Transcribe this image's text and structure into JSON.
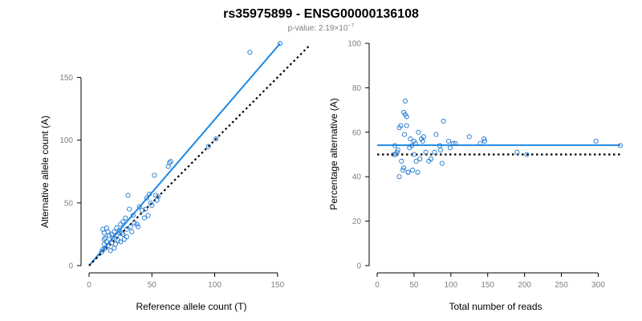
{
  "header": {
    "title": "rs35975899 - ENSG00000136108",
    "pvalue_prefix": "p-value: 2.19×10",
    "pvalue_exponent": "−7"
  },
  "colors": {
    "points": "#1f77d0",
    "fit_line": "#1e88e5",
    "reference_line": "#000000",
    "tick_labels": "#808080"
  },
  "chart_data": [
    {
      "type": "scatter",
      "title": "",
      "xlabel": "Reference allele count (T)",
      "ylabel": "Alternative allele count (A)",
      "xlim": [
        0,
        175
      ],
      "ylim": [
        0,
        165
      ],
      "xticks": [
        0,
        50,
        100,
        150
      ],
      "yticks": [
        0,
        50,
        100,
        150
      ],
      "grid": false,
      "legend": "none",
      "series": [
        {
          "kind": "points",
          "x": [
            10,
            11,
            11,
            12,
            12,
            12,
            13,
            13,
            14,
            14,
            15,
            15,
            16,
            17,
            18,
            18,
            19,
            20,
            20,
            21,
            22,
            22,
            23,
            24,
            25,
            25,
            26,
            27,
            27,
            28,
            29,
            30,
            30,
            31,
            32,
            33,
            34,
            35,
            36,
            38,
            39,
            40,
            42,
            44,
            45,
            46,
            47,
            48,
            49,
            50,
            52,
            53,
            54,
            55,
            63,
            64,
            65,
            95,
            101,
            128,
            152
          ],
          "y": [
            11,
            13,
            29,
            17,
            21,
            26,
            14,
            22,
            19,
            30,
            16,
            27,
            24,
            12,
            18,
            25,
            22,
            27,
            14,
            17,
            24,
            30,
            20,
            28,
            33,
            19,
            26,
            25,
            35,
            21,
            38,
            29,
            23,
            56,
            45,
            31,
            27,
            40,
            34,
            33,
            31,
            47,
            44,
            38,
            45,
            54,
            40,
            57,
            50,
            48,
            72,
            56,
            52,
            55,
            79,
            82,
            83,
            95,
            101,
            170,
            177
          ]
        },
        {
          "kind": "fitted-line",
          "x": [
            0,
            152
          ],
          "y": [
            0,
            177
          ]
        },
        {
          "kind": "reference-line",
          "x": [
            0,
            175
          ],
          "y": [
            0,
            175
          ]
        }
      ]
    },
    {
      "type": "scatter",
      "title": "",
      "xlabel": "Total number of reads",
      "ylabel": "Percentage alternative (A)",
      "xlim": [
        0,
        330
      ],
      "ylim": [
        0,
        100
      ],
      "xticks": [
        0,
        50,
        100,
        150,
        200,
        250,
        300
      ],
      "yticks": [
        0,
        20,
        40,
        60,
        80,
        100
      ],
      "grid": false,
      "legend": "none",
      "series": [
        {
          "kind": "points",
          "x": [
            22,
            24,
            25,
            27,
            28,
            30,
            30,
            32,
            33,
            35,
            36,
            36,
            37,
            38,
            38,
            40,
            40,
            42,
            42,
            44,
            45,
            47,
            48,
            50,
            50,
            52,
            53,
            55,
            56,
            58,
            60,
            62,
            63,
            66,
            70,
            73,
            78,
            80,
            85,
            86,
            88,
            90,
            97,
            99,
            103,
            106,
            125,
            140,
            145,
            146,
            190,
            203,
            297,
            330
          ],
          "y": [
            50,
            54,
            50,
            51,
            52,
            40,
            62,
            63,
            47,
            43,
            44,
            69,
            59,
            68,
            74,
            63,
            67,
            42,
            42,
            53,
            57,
            54,
            43,
            50,
            56,
            55,
            47,
            42,
            60,
            48,
            57,
            56,
            58,
            51,
            47,
            48,
            51,
            59,
            54,
            52,
            46,
            65,
            56,
            53,
            55,
            55,
            58,
            55,
            57,
            56,
            51,
            50,
            56,
            54
          ]
        },
        {
          "kind": "fitted-line",
          "x": [
            0,
            330
          ],
          "y": [
            54.2,
            54.2
          ]
        },
        {
          "kind": "reference-line",
          "x": [
            0,
            330
          ],
          "y": [
            50,
            50
          ]
        }
      ]
    }
  ]
}
